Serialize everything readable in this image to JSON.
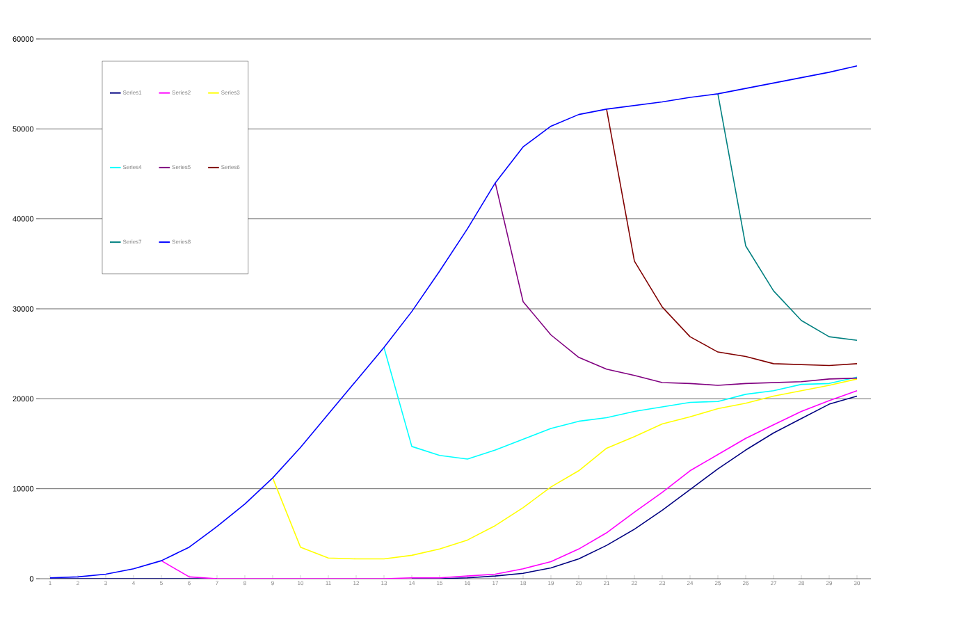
{
  "chart_data": {
    "type": "line",
    "categories": [
      "1",
      "2",
      "3",
      "4",
      "5",
      "6",
      "7",
      "8",
      "9",
      "10",
      "11",
      "12",
      "13",
      "14",
      "15",
      "16",
      "17",
      "18",
      "19",
      "20",
      "21",
      "22",
      "23",
      "24",
      "25",
      "26",
      "27",
      "28",
      "29",
      "30"
    ],
    "ylim": [
      0,
      60000
    ],
    "yticks": [
      0,
      10000,
      20000,
      30000,
      40000,
      50000,
      60000
    ],
    "grid": "y",
    "legend": "top left",
    "marker": "none",
    "series": [
      {
        "name": "Series1",
        "color": "#000080",
        "values": [
          0,
          0,
          0,
          0,
          0,
          0,
          0,
          null,
          null,
          null,
          null,
          null,
          null,
          0,
          0,
          100,
          300,
          600,
          1200,
          2200,
          3700,
          5500,
          7600,
          9900,
          12200,
          14300,
          16200,
          17800,
          19400,
          20300
        ]
      },
      {
        "name": "Series2",
        "color": "#ff00ff",
        "values": [
          null,
          null,
          null,
          null,
          2000,
          200,
          0,
          0,
          0,
          0,
          0,
          0,
          0,
          100,
          100,
          300,
          500,
          1100,
          1900,
          3300,
          5100,
          7400,
          9600,
          12000,
          13800,
          15600,
          17100,
          18600,
          19800,
          20900
        ]
      },
      {
        "name": "Series3",
        "color": "#ffff00",
        "values": [
          null,
          null,
          null,
          null,
          null,
          null,
          null,
          null,
          11200,
          3500,
          2300,
          2200,
          2200,
          2600,
          3300,
          4300,
          5900,
          7900,
          10200,
          12000,
          14500,
          15800,
          17200,
          18000,
          18900,
          19500,
          20300,
          20900,
          21500,
          22200
        ]
      },
      {
        "name": "Series4",
        "color": "#00ffff",
        "values": [
          null,
          null,
          null,
          null,
          null,
          null,
          null,
          null,
          null,
          null,
          null,
          null,
          25700,
          14700,
          13700,
          13300,
          14300,
          15500,
          16700,
          17500,
          17900,
          18600,
          19100,
          19600,
          19700,
          20500,
          20900,
          21600,
          21700,
          22400
        ]
      },
      {
        "name": "Series5",
        "color": "#800080",
        "values": [
          null,
          null,
          null,
          null,
          null,
          null,
          null,
          null,
          null,
          null,
          null,
          null,
          null,
          null,
          null,
          null,
          44000,
          30800,
          27100,
          24600,
          23300,
          22600,
          21800,
          21700,
          21500,
          21700,
          21800,
          21900,
          22200,
          22300
        ]
      },
      {
        "name": "Series6",
        "color": "#800000",
        "values": [
          null,
          null,
          null,
          null,
          null,
          null,
          null,
          null,
          null,
          null,
          null,
          null,
          null,
          null,
          null,
          null,
          null,
          null,
          null,
          null,
          52200,
          35300,
          30200,
          26900,
          25200,
          24700,
          23900,
          23800,
          23700,
          23900
        ]
      },
      {
        "name": "Series7",
        "color": "#008080",
        "values": [
          null,
          null,
          null,
          null,
          null,
          null,
          null,
          null,
          null,
          null,
          null,
          null,
          null,
          null,
          null,
          null,
          null,
          null,
          null,
          null,
          null,
          null,
          null,
          null,
          53900,
          37000,
          32000,
          28700,
          26900,
          26500
        ]
      },
      {
        "name": "Series8",
        "color": "#0000ff",
        "values": [
          100,
          200,
          500,
          1100,
          2000,
          3500,
          5800,
          8300,
          11200,
          14600,
          18300,
          22000,
          25700,
          29700,
          34200,
          38900,
          44000,
          48000,
          50300,
          51600,
          52200,
          52600,
          53000,
          53500,
          53900,
          54500,
          55100,
          55700,
          56300,
          57000
        ]
      }
    ]
  }
}
